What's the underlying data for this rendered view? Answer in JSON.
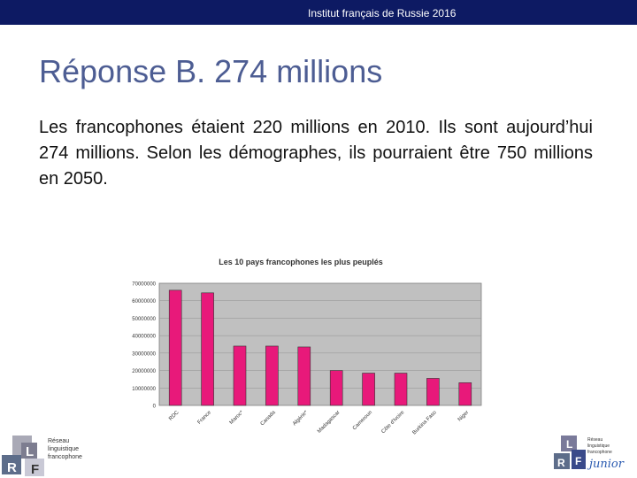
{
  "header": {
    "text": "Institut français de Russie 2016"
  },
  "slide": {
    "title": "Réponse B. 274 millions",
    "body": "Les francophones étaient 220 millions en 2010. Ils sont aujourd’hui 274 millions. Selon les démographes, ils pourraient être 750 millions en 2050."
  },
  "chart_data": {
    "type": "bar",
    "title": "Les 10 pays francophones les plus peuplés",
    "categories": [
      "RDC",
      "France",
      "Maroc*",
      "Canada",
      "Algérie*",
      "Madagascar",
      "Cameroun",
      "Côte d'Ivoire",
      "Burkina Faso",
      "Niger"
    ],
    "values": [
      66000000,
      64500000,
      34000000,
      34000000,
      33500000,
      20000000,
      18500000,
      18500000,
      15500000,
      13000000
    ],
    "ytick_labels": [
      "0",
      "10000000",
      "20000000",
      "30000000",
      "40000000",
      "50000000",
      "60000000",
      "70000000"
    ],
    "ylim": [
      0,
      70000000
    ],
    "xlabel": "",
    "ylabel": "",
    "grid": true,
    "bar_color": "#e8197a",
    "plot_background": "#c0c0c0"
  },
  "logos": {
    "left": {
      "lines": [
        "Réseau",
        "linguistique",
        "francophone"
      ],
      "letters": [
        "L",
        "R",
        "F"
      ]
    },
    "right": {
      "lines": [
        "Réseau",
        "linguistique",
        "francophone"
      ],
      "letters": [
        "L",
        "R",
        "F"
      ],
      "tag": "junior"
    }
  }
}
